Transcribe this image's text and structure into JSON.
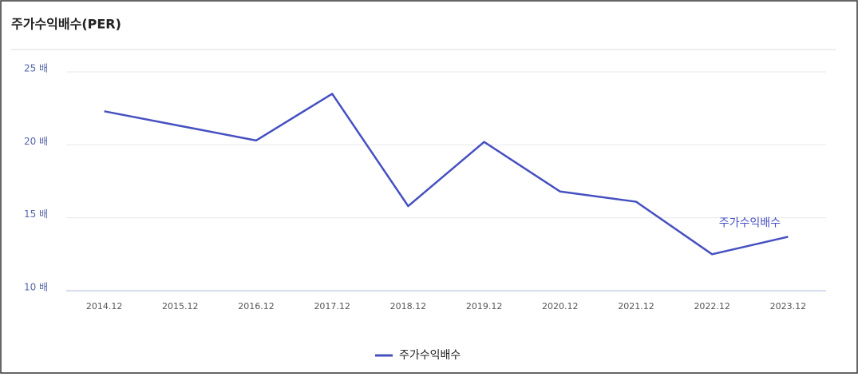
{
  "chart_data": {
    "type": "line",
    "title": "주가수익배수(PER)",
    "categories": [
      "2014.12",
      "2015.12",
      "2016.12",
      "2017.12",
      "2018.12",
      "2019.12",
      "2020.12",
      "2021.12",
      "2022.12",
      "2023.12"
    ],
    "series": [
      {
        "name": "주가수익배수",
        "color": "#4650c0",
        "values": [
          22.3,
          21.3,
          20.3,
          23.5,
          15.8,
          20.2,
          16.8,
          16.1,
          12.5,
          13.7
        ]
      }
    ],
    "ylim": [
      10,
      25
    ],
    "yticks": [
      {
        "value": 10,
        "label": "10 배"
      },
      {
        "value": 15,
        "label": "15 배"
      },
      {
        "value": 20,
        "label": "20 배"
      },
      {
        "value": 25,
        "label": "25 배"
      }
    ],
    "grid": true,
    "legend": "bottom"
  }
}
